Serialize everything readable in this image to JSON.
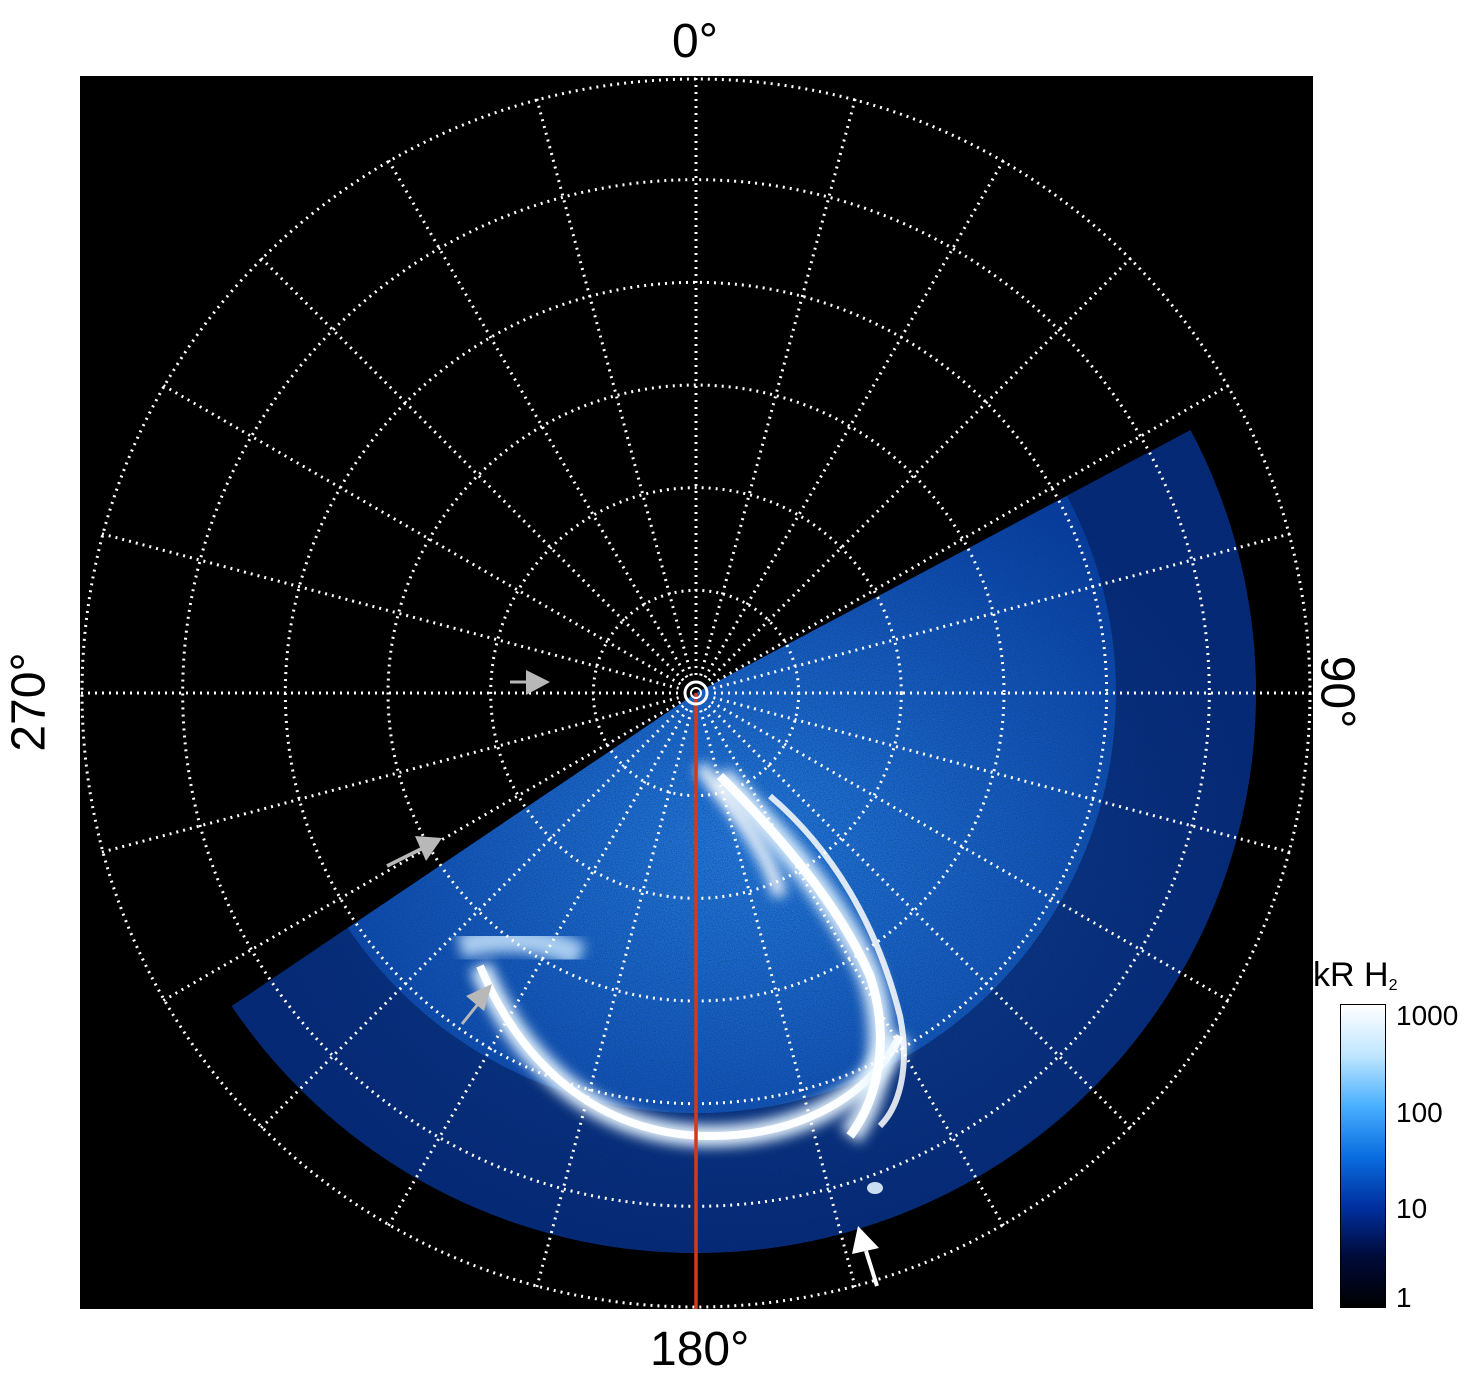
{
  "angle_labels": {
    "top": "0°",
    "right": "90°",
    "bottom": "180°",
    "left": "270°"
  },
  "colorbar": {
    "unit": "kR H",
    "unit_subscript": "2",
    "ticks": [
      "1000",
      "100",
      "10",
      "1"
    ],
    "colors": [
      "#000000",
      "#000a3a",
      "#0030a0",
      "#0a6ee0",
      "#4ab0ff",
      "#bfe6ff",
      "#ffffff"
    ]
  },
  "colors": {
    "background": "#000000",
    "grid": "#ffffff",
    "meridian_line": "#d23a1a",
    "arrow_gray": "#b8b8b8",
    "arrow_white": "#ffffff"
  },
  "grid": {
    "meridian_step_degrees": 15,
    "latitude_circle_count": 6,
    "style": "dotted"
  },
  "annotations": {
    "arrows": [
      {
        "color": "gray",
        "count": 3
      },
      {
        "color": "white",
        "count": 1
      }
    ]
  }
}
